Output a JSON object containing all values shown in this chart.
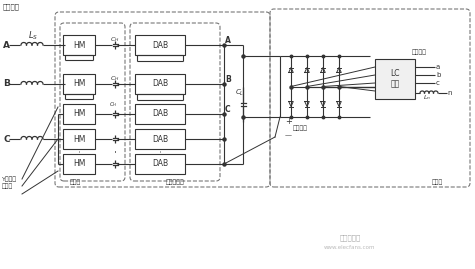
{
  "fig_width": 4.75,
  "fig_height": 2.69,
  "dpi": 100,
  "top_label": "输入接口",
  "hm_label": "HM",
  "dab_label": "DAB",
  "lc_label": "LC\n滤波",
  "cl_label": "CL",
  "yn_label": "Y型连接\n中性点",
  "input_stage_label": "输入级",
  "iso_stage_label": "隔离变换级",
  "output_stage_label": "输出级",
  "ac_port_label": "交流接口",
  "dc_port_label": "直流接口",
  "ac_phases": [
    "a",
    "b",
    "c",
    "n"
  ],
  "dark": "#333333",
  "box_bg": "#f0f0f0",
  "dash_color": "#777777",
  "watermark1": "电子发烧友",
  "watermark2": "www.elecfans.com"
}
